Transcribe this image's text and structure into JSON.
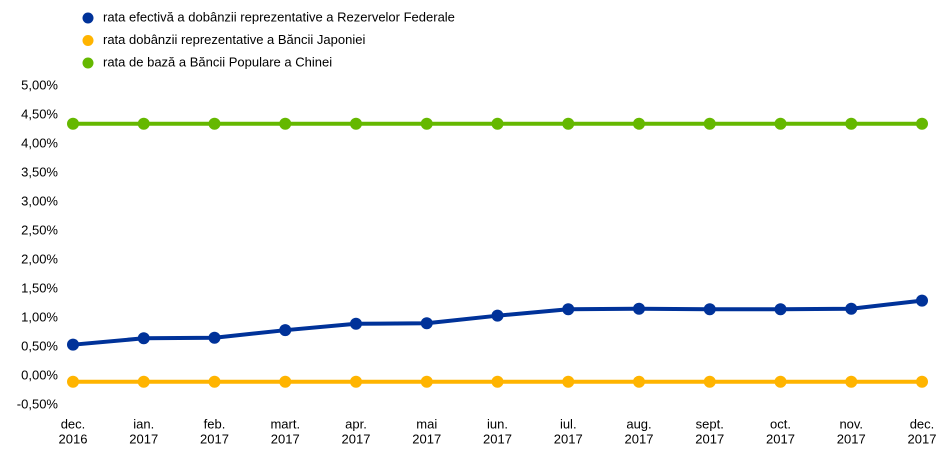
{
  "chart_data": {
    "type": "line",
    "categories": [
      [
        "dec.",
        "2016"
      ],
      [
        "ian.",
        "2017"
      ],
      [
        "feb.",
        "2017"
      ],
      [
        "mart.",
        "2017"
      ],
      [
        "apr.",
        "2017"
      ],
      [
        "mai",
        "2017"
      ],
      [
        "iun.",
        "2017"
      ],
      [
        "iul.",
        "2017"
      ],
      [
        "aug.",
        "2017"
      ],
      [
        "sept.",
        "2017"
      ],
      [
        "oct.",
        "2017"
      ],
      [
        "nov.",
        "2017"
      ],
      [
        "dec.",
        "2017"
      ]
    ],
    "series": [
      {
        "name": "rata efectivă a dobânzii reprezentative a Rezervelor Federale",
        "color": "#003299",
        "values": [
          0.54,
          0.65,
          0.66,
          0.79,
          0.9,
          0.91,
          1.04,
          1.15,
          1.16,
          1.15,
          1.15,
          1.16,
          1.3
        ]
      },
      {
        "name": "rata dobânzii reprezentative a Băncii Japoniei",
        "color": "#ffb400",
        "values": [
          -0.1,
          -0.1,
          -0.1,
          -0.1,
          -0.1,
          -0.1,
          -0.1,
          -0.1,
          -0.1,
          -0.1,
          -0.1,
          -0.1,
          -0.1
        ]
      },
      {
        "name": "rata de bază a Băncii Populare a Chinei",
        "color": "#65b800",
        "values": [
          4.35,
          4.35,
          4.35,
          4.35,
          4.35,
          4.35,
          4.35,
          4.35,
          4.35,
          4.35,
          4.35,
          4.35,
          4.35
        ]
      }
    ],
    "ylim": [
      -0.5,
      5
    ],
    "yticks": [
      {
        "value": -0.5,
        "label": "-0,50%"
      },
      {
        "value": 0,
        "label": "0,00%"
      },
      {
        "value": 0.5,
        "label": "0,50%"
      },
      {
        "value": 1,
        "label": "1,00%"
      },
      {
        "value": 1.5,
        "label": "1,50%"
      },
      {
        "value": 2,
        "label": "2,00%"
      },
      {
        "value": 2.5,
        "label": "2,50%"
      },
      {
        "value": 3,
        "label": "3,00%"
      },
      {
        "value": 3.5,
        "label": "3,50%"
      },
      {
        "value": 4,
        "label": "4,00%"
      },
      {
        "value": 4.5,
        "label": "4,50%"
      },
      {
        "value": 5,
        "label": "5,00%"
      }
    ],
    "grid": false,
    "legend": "top"
  }
}
